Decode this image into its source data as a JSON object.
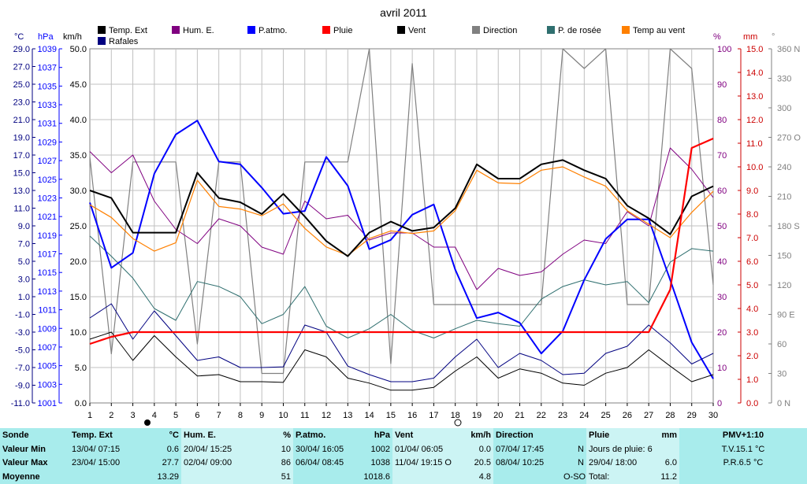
{
  "chart_data": {
    "type": "line",
    "title": "avril 2011",
    "x": [
      1,
      2,
      3,
      4,
      5,
      6,
      7,
      8,
      9,
      10,
      11,
      12,
      13,
      14,
      15,
      16,
      17,
      18,
      19,
      20,
      21,
      22,
      23,
      24,
      25,
      26,
      27,
      28,
      29,
      30
    ],
    "x_ticks": [
      "1",
      "2",
      "3",
      "4",
      "5",
      "6",
      "7",
      "8",
      "9",
      "10",
      "11",
      "12",
      "13",
      "14",
      "15",
      "16",
      "17",
      "18",
      "19",
      "20",
      "21",
      "22",
      "23",
      "24",
      "25",
      "26",
      "27",
      "28",
      "29",
      "30"
    ],
    "axis_headers": {
      "temp": "°C",
      "hpa": "hPa",
      "kmh": "km/h",
      "pct": "%",
      "mm": "mm",
      "deg": "°"
    },
    "axes": {
      "temp": {
        "range": [
          -11,
          31
        ],
        "ticks": [
          "29.0",
          "27.0",
          "25.0",
          "23.0",
          "21.0",
          "19.0",
          "17.0",
          "15.0",
          "13.0",
          "11.0",
          "9.0",
          "7.0",
          "5.0",
          "3.0",
          "1.0",
          "-1.0",
          "-3.0",
          "-5.0",
          "-7.0",
          "-9.0",
          "-11.0"
        ]
      },
      "hpa": {
        "range": [
          1001,
          1039
        ],
        "ticks": [
          "1039",
          "1037",
          "1035",
          "1033",
          "1031",
          "1029",
          "1027",
          "1025",
          "1023",
          "1021",
          "1019",
          "1017",
          "1015",
          "1013",
          "1011",
          "1009",
          "1007",
          "1005",
          "1003",
          "1001"
        ]
      },
      "kmh": {
        "range": [
          0,
          50
        ],
        "ticks": [
          "50.0",
          "45.0",
          "40.0",
          "35.0",
          "30.0",
          "25.0",
          "20.0",
          "15.0",
          "10.0",
          "5.0",
          "0.0"
        ]
      },
      "pct": {
        "range": [
          0,
          100
        ],
        "ticks": [
          "100",
          "90",
          "80",
          "70",
          "60",
          "50",
          "40",
          "30",
          "20",
          "10",
          "0"
        ]
      },
      "mm": {
        "range": [
          0,
          15
        ],
        "ticks": [
          "15.0",
          "14.0",
          "13.0",
          "12.0",
          "11.0",
          "10.0",
          "9.0",
          "8.0",
          "7.0",
          "6.0",
          "5.0",
          "4.0",
          "3.0",
          "2.0",
          "1.0",
          "0.0"
        ]
      },
      "deg": {
        "range": [
          0,
          360
        ],
        "ticks": [
          "360 N",
          "330",
          "300",
          "270 O",
          "240",
          "210",
          "180 S",
          "150",
          "120",
          "90 E",
          "60",
          "30",
          "0 N"
        ]
      }
    },
    "legend": [
      {
        "key": "temp",
        "label": "Temp. Ext",
        "color": "#000000"
      },
      {
        "key": "rafales",
        "label": "Rafales",
        "color": "#000080"
      },
      {
        "key": "hum",
        "label": "Hum. E.",
        "color": "#800080"
      },
      {
        "key": "patm",
        "label": "P.atmo.",
        "color": "#0000ff"
      },
      {
        "key": "pluie",
        "label": "Pluie",
        "color": "#ff0000"
      },
      {
        "key": "vent",
        "label": "Vent",
        "color": "#000000"
      },
      {
        "key": "direction",
        "label": "Direction",
        "color": "#808080"
      },
      {
        "key": "rosee",
        "label": "P. de rosée",
        "color": "#2f6f6f"
      },
      {
        "key": "tempvent",
        "label": "Temp au vent",
        "color": "#ff8000"
      }
    ],
    "series": [
      {
        "key": "direction",
        "axis": "deg",
        "color": "#808080",
        "width": 1.2,
        "values": [
          250,
          50,
          245,
          245,
          245,
          60,
          245,
          245,
          30,
          30,
          245,
          245,
          245,
          360,
          40,
          345,
          100,
          100,
          100,
          100,
          100,
          100,
          360,
          340,
          360,
          100,
          100,
          360,
          340,
          120
        ]
      },
      {
        "key": "rosee",
        "axis": "temp",
        "color": "#2f6f6f",
        "width": 1,
        "values": [
          8.8,
          6.4,
          3.8,
          0.2,
          -1.2,
          3.4,
          2.8,
          1.6,
          -1.6,
          -0.5,
          2.8,
          -1.9,
          -3.3,
          -2.2,
          -0.5,
          -2.4,
          -3.3,
          -2.2,
          -1.2,
          -1.6,
          -1.9,
          1.3,
          2.8,
          3.6,
          3.0,
          3.4,
          0.9,
          5.7,
          7.3,
          7.0
        ]
      },
      {
        "key": "hum",
        "axis": "pct",
        "color": "#800080",
        "width": 1,
        "values": [
          71,
          65,
          70,
          57,
          49,
          45,
          52,
          50,
          44,
          42,
          57,
          52,
          53,
          46,
          48,
          48,
          44,
          44,
          32,
          38,
          36,
          37,
          42,
          46,
          45,
          54,
          50,
          72,
          66,
          58
        ]
      },
      {
        "key": "patm",
        "axis": "hpa",
        "color": "#0000ff",
        "width": 2,
        "values": [
          1022.5,
          1015.5,
          1017.1,
          1025.6,
          1029.8,
          1031.3,
          1026.9,
          1026.6,
          1024.1,
          1021.3,
          1021.6,
          1027.4,
          1024.3,
          1017.5,
          1018.5,
          1021.2,
          1022.3,
          1015.3,
          1010.1,
          1010.7,
          1009.6,
          1006.3,
          1008.7,
          1014.2,
          1018.6,
          1020.7,
          1020.7,
          1014.2,
          1007.5,
          1003.6
        ]
      },
      {
        "key": "rafales",
        "axis": "kmh",
        "color": "#000080",
        "width": 1,
        "values": [
          12,
          14,
          9,
          13,
          9.5,
          6,
          6.5,
          5,
          5,
          5.1,
          11,
          10,
          5.2,
          4,
          3,
          3,
          3.5,
          6.5,
          9,
          5,
          7,
          6,
          4,
          4.2,
          7,
          8,
          11,
          8.5,
          5.5,
          7
        ]
      },
      {
        "key": "vent",
        "axis": "kmh",
        "color": "#000000",
        "width": 1,
        "values": [
          9,
          10,
          6,
          9.5,
          6.5,
          3.8,
          4,
          3,
          3,
          2.9,
          7.5,
          6.5,
          3.5,
          2.8,
          1.8,
          1.8,
          2.2,
          4.5,
          6.5,
          3.5,
          4.8,
          4.2,
          2.8,
          2.5,
          4.2,
          5,
          7.5,
          5.2,
          3,
          4
        ]
      },
      {
        "key": "tempvent",
        "axis": "temp",
        "color": "#ff8000",
        "width": 1.2,
        "values": [
          12.5,
          11,
          8.5,
          7,
          8,
          15.4,
          12.3,
          12,
          11.2,
          12.6,
          9.7,
          7.5,
          6.5,
          8.5,
          9.4,
          9.1,
          9.4,
          11.8,
          16.6,
          15.1,
          15,
          16.6,
          17,
          15.8,
          14.7,
          11.8,
          10.2,
          8.6,
          11.6,
          14.1
        ]
      },
      {
        "key": "temp",
        "axis": "temp",
        "color": "#000000",
        "width": 2,
        "values": [
          14.2,
          13.3,
          9.2,
          9.2,
          9.2,
          16.3,
          13.3,
          12.8,
          11.4,
          13.8,
          11.1,
          8.2,
          6.4,
          9.2,
          10.5,
          9.4,
          9.8,
          12.1,
          17.3,
          15.6,
          15.6,
          17.3,
          17.8,
          16.6,
          15.6,
          12.4,
          10.9,
          9.0,
          13.5,
          14.7
        ]
      },
      {
        "key": "pluie",
        "axis": "mm",
        "color": "#ff0000",
        "width": 2.2,
        "values": [
          2.5,
          2.8,
          3.0,
          3.0,
          3.0,
          3.0,
          3.0,
          3.0,
          3.0,
          3.0,
          3.0,
          3.0,
          3.0,
          3.0,
          3.0,
          3.0,
          3.0,
          3.0,
          3.0,
          3.0,
          3.0,
          3.0,
          3.0,
          3.0,
          3.0,
          3.0,
          3.0,
          4.8,
          10.8,
          11.2
        ]
      }
    ]
  },
  "stats": {
    "sonde": {
      "title": "Sonde",
      "min": "Valeur Min",
      "max": "Valeur Max",
      "avg": "Moyenne"
    },
    "temp": {
      "title": "Temp. Ext",
      "unit": "°C",
      "min_time": "13/04/ 07:15",
      "min_val": "0.6",
      "max_time": "23/04/ 15:00",
      "max_val": "27.7",
      "avg": "13.29"
    },
    "hum": {
      "title": "Hum. E.",
      "unit": "%",
      "min_time": "20/04/ 15:25",
      "min_val": "10",
      "max_time": "02/04/ 09:00",
      "max_val": "86",
      "avg": "51"
    },
    "patm": {
      "title": "P.atmo.",
      "unit": "hPa",
      "min_time": "30/04/ 16:05",
      "min_val": "1002",
      "max_time": "06/04/ 08:45",
      "max_val": "1038",
      "avg": "1018.6"
    },
    "vent": {
      "title": "Vent",
      "unit": "km/h",
      "min_time": "01/04/ 06:05",
      "min_val": "0.0",
      "max_time": "11/04/ 19:15",
      "max_dir": "O",
      "max_val": "20.5",
      "avg": "4.8"
    },
    "dir": {
      "title": "Direction",
      "min_time": "07/04/ 17:45",
      "min_val": "N",
      "max_time": "08/04/ 10:25",
      "max_val": "N",
      "avg": "O-SO"
    },
    "pluie": {
      "title": "Pluie",
      "unit": "mm",
      "days_label": "Jours de pluie: 6",
      "max_time": "29/04/ 18:00",
      "max_val": "6.0",
      "total_label": "Total:",
      "total_val": "11.2"
    },
    "pmv": {
      "title": "PMV+1:10",
      "tv": "T.V.15.1 °C",
      "pr": "P.R.6.5 °C"
    }
  }
}
